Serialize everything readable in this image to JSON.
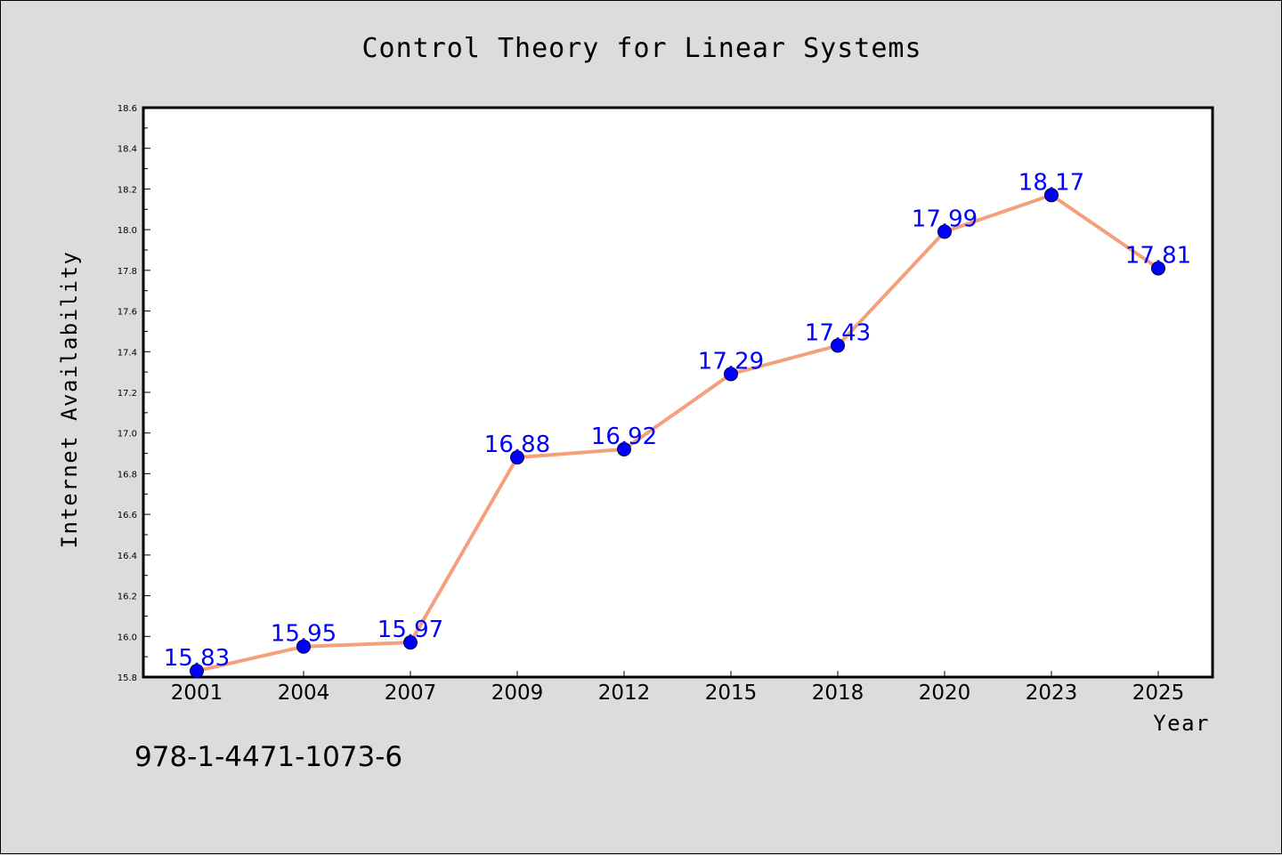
{
  "chart_data": {
    "type": "line",
    "title": "Control Theory for Linear Systems",
    "xlabel": "Year",
    "ylabel": "Internet Availability",
    "categories": [
      "2001",
      "2004",
      "2007",
      "2009",
      "2012",
      "2015",
      "2018",
      "2020",
      "2023",
      "2025"
    ],
    "series": [
      {
        "values": [
          15.83,
          15.95,
          15.97,
          16.88,
          16.92,
          17.29,
          17.43,
          17.99,
          18.17,
          17.81
        ]
      }
    ],
    "data_labels": [
      "15.83",
      "15.95",
      "15.97",
      "16.88",
      "16.92",
      "17.29",
      "17.43",
      "17.99",
      "18.17",
      "17.81"
    ],
    "ylim": [
      15.8,
      18.6
    ],
    "yticks": [
      "15.8",
      "16.0",
      "16.2",
      "16.4",
      "16.6",
      "16.8",
      "17.0",
      "17.2",
      "17.4",
      "17.6",
      "17.8",
      "18.0",
      "18.2",
      "18.4",
      "18.6"
    ],
    "grid": false,
    "colors": {
      "line": "#f4a07c",
      "marker": "#0000ff",
      "labels": "#0000ff",
      "plot_background": "#ffffff",
      "figure_background": "#dcdcdc"
    }
  },
  "footer": {
    "isbn": "978-1-4471-1073-6"
  }
}
